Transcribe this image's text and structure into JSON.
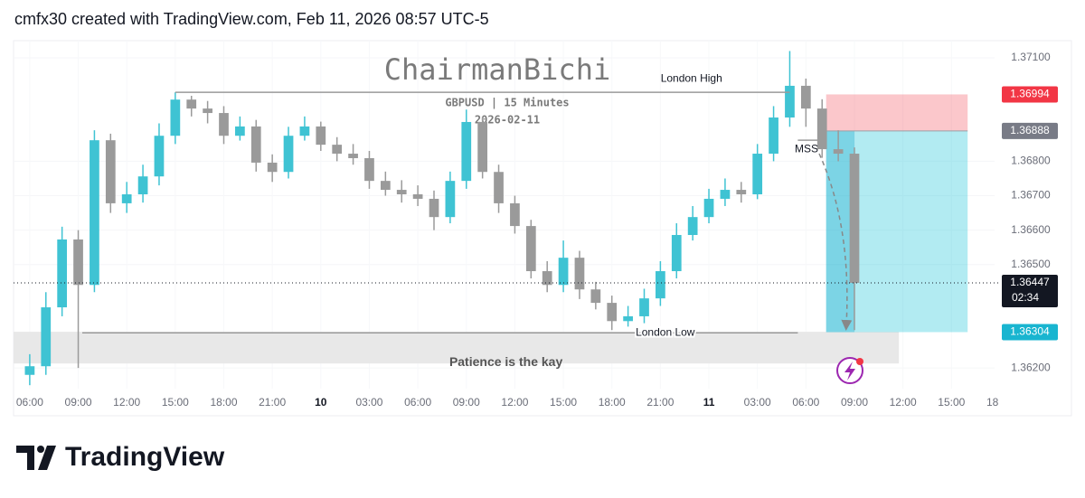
{
  "header": "cmfx30 created with TradingView.com, Feb 11, 2026 08:57 UTC-5",
  "footer": {
    "brand": "TradingView"
  },
  "chart_data": {
    "type": "candlestick",
    "watermark": {
      "name": "ChairmanBichi",
      "symbol": "GBPUSD | 15 Minutes",
      "date": "2026-02-11"
    },
    "up_color": "#3fc3d3",
    "down_color": "#9a9a9a",
    "x": [
      "2026-02-09T06:00",
      "2026-02-09T07:00",
      "2026-02-09T08:00",
      "2026-02-09T09:00",
      "2026-02-09T10:00",
      "2026-02-09T11:00",
      "2026-02-09T12:00",
      "2026-02-09T13:00",
      "2026-02-09T14:00",
      "2026-02-09T15:00",
      "2026-02-09T16:00",
      "2026-02-09T17:00",
      "2026-02-09T18:00",
      "2026-02-09T19:00",
      "2026-02-09T20:00",
      "2026-02-09T21:00",
      "2026-02-09T22:00",
      "2026-02-09T23:00",
      "2026-02-10T00:00",
      "2026-02-10T01:00",
      "2026-02-10T02:00",
      "2026-02-10T03:00",
      "2026-02-10T04:00",
      "2026-02-10T05:00",
      "2026-02-10T06:00",
      "2026-02-10T07:00",
      "2026-02-10T08:00",
      "2026-02-10T09:00",
      "2026-02-10T10:00",
      "2026-02-10T11:00",
      "2026-02-10T12:00",
      "2026-02-10T13:00",
      "2026-02-10T14:00",
      "2026-02-10T15:00",
      "2026-02-10T16:00",
      "2026-02-10T17:00",
      "2026-02-10T18:00",
      "2026-02-10T19:00",
      "2026-02-10T20:00",
      "2026-02-10T21:00",
      "2026-02-10T22:00",
      "2026-02-10T23:00",
      "2026-02-11T00:00",
      "2026-02-11T01:00",
      "2026-02-11T02:00",
      "2026-02-11T03:00",
      "2026-02-11T04:00",
      "2026-02-11T05:00",
      "2026-02-11T06:00",
      "2026-02-11T07:00",
      "2026-02-11T08:00",
      "2026-02-11T09:00"
    ],
    "open": [
      1.3618,
      1.36205,
      1.36376,
      1.36573,
      1.36441,
      1.36861,
      1.36678,
      1.36704,
      1.36756,
      1.36874,
      1.36979,
      1.36953,
      1.3694,
      1.36874,
      1.36901,
      1.36796,
      1.36769,
      1.36874,
      1.36901,
      1.36848,
      1.36822,
      1.36809,
      1.36743,
      1.36717,
      1.36704,
      1.36691,
      1.36638,
      1.36743,
      1.36914,
      1.36769,
      1.36678,
      1.36612,
      1.36481,
      1.36441,
      1.3652,
      1.36428,
      1.36389,
      1.36336,
      1.3635,
      1.36402,
      1.36481,
      1.36586,
      1.36638,
      1.36691,
      1.36717,
      1.36704,
      1.36822,
      1.36927,
      1.37019,
      1.36953,
      1.36835,
      1.36822
    ],
    "high": [
      1.3624,
      1.3642,
      1.3661,
      1.366,
      1.3689,
      1.3688,
      1.3674,
      1.3679,
      1.3691,
      1.37,
      1.3699,
      1.36975,
      1.3696,
      1.3693,
      1.3692,
      1.3682,
      1.369,
      1.3693,
      1.36915,
      1.3687,
      1.3685,
      1.3683,
      1.3677,
      1.36745,
      1.3673,
      1.36715,
      1.3677,
      1.3695,
      1.3693,
      1.3679,
      1.367,
      1.3663,
      1.3651,
      1.3657,
      1.3654,
      1.3645,
      1.3641,
      1.3638,
      1.3643,
      1.3651,
      1.3662,
      1.3667,
      1.3672,
      1.3675,
      1.3674,
      1.3685,
      1.3696,
      1.3712,
      1.3704,
      1.3698,
      1.3689,
      1.3684
    ],
    "low": [
      1.3615,
      1.3618,
      1.3635,
      1.362,
      1.3642,
      1.3665,
      1.3665,
      1.3668,
      1.3673,
      1.3685,
      1.3693,
      1.3691,
      1.3685,
      1.3686,
      1.3677,
      1.3674,
      1.3675,
      1.3686,
      1.3683,
      1.368,
      1.3679,
      1.3672,
      1.367,
      1.3668,
      1.3667,
      1.366,
      1.3662,
      1.3672,
      1.3675,
      1.3665,
      1.3659,
      1.3646,
      1.3642,
      1.3642,
      1.364,
      1.3637,
      1.3631,
      1.3632,
      1.3633,
      1.3638,
      1.3646,
      1.3657,
      1.3662,
      1.3667,
      1.3668,
      1.3669,
      1.368,
      1.369,
      1.369,
      1.3681,
      1.368,
      1.3631
    ],
    "close": [
      1.36205,
      1.36376,
      1.36573,
      1.36441,
      1.36861,
      1.36678,
      1.36704,
      1.36756,
      1.36874,
      1.36979,
      1.36953,
      1.3694,
      1.36874,
      1.36901,
      1.36796,
      1.36769,
      1.36874,
      1.36901,
      1.36848,
      1.36822,
      1.36809,
      1.36743,
      1.36717,
      1.36704,
      1.36691,
      1.36638,
      1.36743,
      1.36914,
      1.36769,
      1.36678,
      1.36612,
      1.36481,
      1.36441,
      1.3652,
      1.36428,
      1.36389,
      1.36336,
      1.3635,
      1.36402,
      1.36481,
      1.36586,
      1.36638,
      1.36691,
      1.36717,
      1.36704,
      1.36822,
      1.36927,
      1.37019,
      1.36953,
      1.36835,
      1.36822,
      1.36447
    ],
    "countdown": "02:34",
    "xlim": [
      "2026-02-09T05:00",
      "2026-02-11T17:40"
    ],
    "xticks": [
      {
        "value": "2026-02-09T06:00",
        "label": "06:00"
      },
      {
        "value": "2026-02-09T09:00",
        "label": "09:00"
      },
      {
        "value": "2026-02-09T12:00",
        "label": "12:00"
      },
      {
        "value": "2026-02-09T15:00",
        "label": "15:00"
      },
      {
        "value": "2026-02-09T18:00",
        "label": "18:00"
      },
      {
        "value": "2026-02-09T21:00",
        "label": "21:00"
      },
      {
        "value": "2026-02-10T00:00",
        "label": "10"
      },
      {
        "value": "2026-02-10T03:00",
        "label": "03:00"
      },
      {
        "value": "2026-02-10T06:00",
        "label": "06:00"
      },
      {
        "value": "2026-02-10T09:00",
        "label": "09:00"
      },
      {
        "value": "2026-02-10T12:00",
        "label": "12:00"
      },
      {
        "value": "2026-02-10T15:00",
        "label": "15:00"
      },
      {
        "value": "2026-02-10T18:00",
        "label": "18:00"
      },
      {
        "value": "2026-02-10T21:00",
        "label": "21:00"
      },
      {
        "value": "2026-02-11T00:00",
        "label": "11"
      },
      {
        "value": "2026-02-11T03:00",
        "label": "03:00"
      },
      {
        "value": "2026-02-11T06:00",
        "label": "06:00"
      },
      {
        "value": "2026-02-11T09:00",
        "label": "09:00"
      },
      {
        "value": "2026-02-11T12:00",
        "label": "12:00"
      },
      {
        "value": "2026-02-11T15:00",
        "label": "15:00"
      },
      {
        "value": "2026-02-11T18:00",
        "label": "18:00"
      }
    ],
    "ylim": [
      1.3614,
      1.3715
    ],
    "yticks": [
      {
        "value": 1.371,
        "label": "1.37100"
      },
      {
        "value": 1.368,
        "label": "1.36800"
      },
      {
        "value": 1.367,
        "label": "1.36700"
      },
      {
        "value": 1.366,
        "label": "1.36600"
      },
      {
        "value": 1.365,
        "label": "1.36500"
      },
      {
        "value": 1.362,
        "label": "1.36200"
      }
    ],
    "levels": [
      {
        "label": "London High",
        "price": 1.37,
        "from": "2026-02-09T15:00",
        "to": "2026-02-11T05:00"
      },
      {
        "label": "London Low",
        "price": 1.36302,
        "from": "2026-02-09T09:15",
        "to": "2026-02-11T05:30"
      },
      {
        "label": "MSS",
        "price": 1.36861,
        "from": "2026-02-11T05:30",
        "to": "2026-02-11T07:15"
      }
    ],
    "zone": {
      "label": "Patience is the kay",
      "top": 1.36305,
      "bottom": 1.36213,
      "from": "2026-02-09T05:00",
      "to": "2026-02-11T11:45"
    },
    "position": {
      "from": "2026-02-11T07:15",
      "to": "2026-02-11T16:00",
      "stop": 1.36994,
      "entry": 1.36888,
      "target": 1.36304
    }
  }
}
